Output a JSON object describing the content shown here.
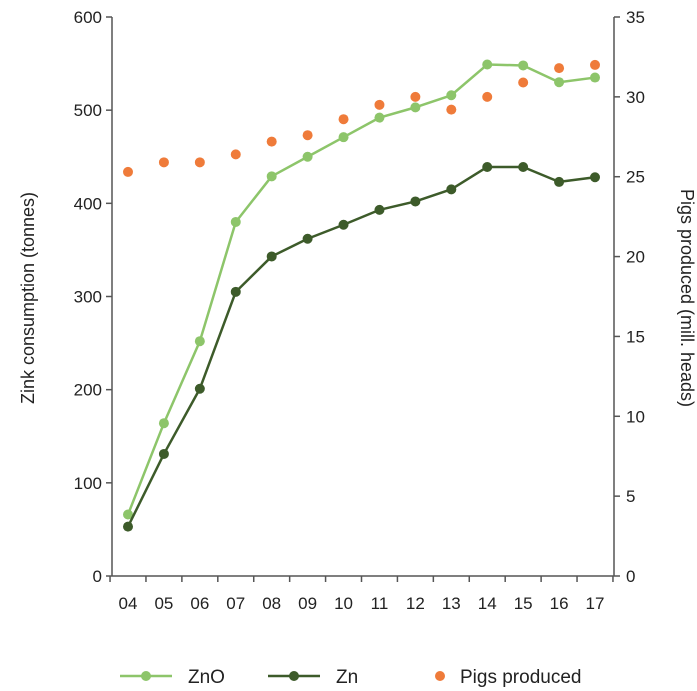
{
  "chart_data": {
    "type": "line",
    "categories": [
      "04",
      "05",
      "06",
      "07",
      "08",
      "09",
      "10",
      "11",
      "12",
      "13",
      "14",
      "15",
      "16",
      "17"
    ],
    "ylabel_left": "Zink consumption (tonnes)",
    "ylabel_right": "Pigs produced (mill. heads)",
    "ylim_left": [
      0,
      600
    ],
    "ylim_right": [
      0,
      35
    ],
    "yticks_left": [
      0,
      100,
      200,
      300,
      400,
      500,
      600
    ],
    "yticks_right": [
      0,
      5,
      10,
      15,
      20,
      25,
      30,
      35
    ],
    "grid": false,
    "legend_position": "bottom",
    "series": [
      {
        "name": "ZnO",
        "axis": "left",
        "style": "line-marker",
        "color": "#8DC56A",
        "values": [
          66,
          164,
          252,
          380,
          429,
          450,
          471,
          492,
          503,
          516,
          549,
          548,
          530,
          535
        ]
      },
      {
        "name": "Zn",
        "axis": "left",
        "style": "line-marker",
        "color": "#3D5B2A",
        "values": [
          53,
          131,
          201,
          305,
          343,
          362,
          377,
          393,
          402,
          415,
          439,
          439,
          423,
          428
        ]
      },
      {
        "name": "Pigs produced",
        "axis": "right",
        "style": "dots",
        "color": "#EF7B3A",
        "values": [
          25.3,
          25.9,
          25.9,
          26.4,
          27.2,
          27.6,
          28.6,
          29.5,
          30.0,
          29.2,
          30.0,
          30.9,
          31.8,
          32.0
        ]
      }
    ]
  }
}
